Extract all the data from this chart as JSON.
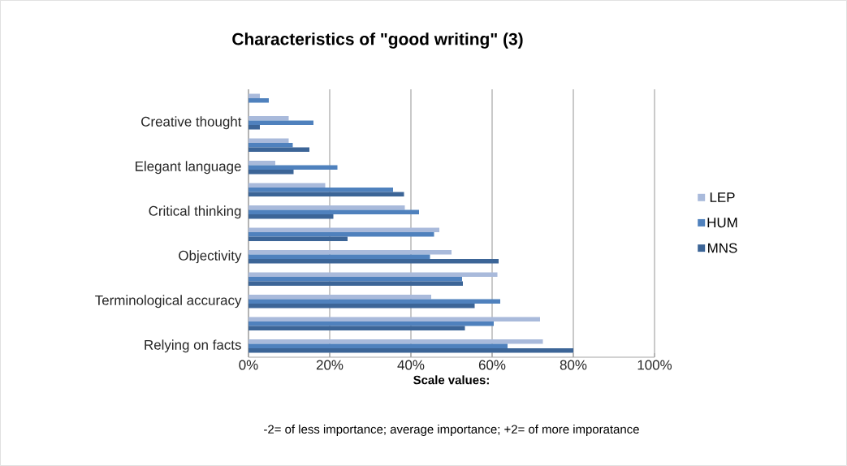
{
  "chart_data": {
    "type": "bar",
    "orientation": "horizontal",
    "title": "Characteristics of \"good writing\" (3)",
    "xlabel": "Scale values:",
    "annotations": [
      "-2= of less importance; average importance; +2= of more imporatance"
    ],
    "categories": [
      null,
      "Creative thought",
      null,
      "Elegant language",
      null,
      "Critical thinking",
      null,
      "Objectivity",
      null,
      "Terminological accuracy",
      null,
      "Relying on facts"
    ],
    "series": [
      {
        "name": "LEP",
        "color": "#a9badb",
        "values": [
          2.8,
          9.9,
          9.9,
          6.6,
          18.9,
          38.5,
          47,
          50,
          61.3,
          45,
          71.8,
          72.5
        ]
      },
      {
        "name": "HUM",
        "color": "#4f81bd",
        "values": [
          5,
          16,
          10.9,
          21.9,
          35.6,
          42,
          45.7,
          44.7,
          52.6,
          62,
          60.4,
          63.8
        ]
      },
      {
        "name": "MNS",
        "color": "#3c6597",
        "values": [
          null,
          2.8,
          15,
          11.1,
          38.3,
          20.9,
          24.4,
          61.6,
          52.8,
          55.7,
          53.3,
          80
        ]
      }
    ],
    "xlim": [
      0,
      100
    ],
    "xticks": [
      {
        "value": 0,
        "label": "0%"
      },
      {
        "value": 20,
        "label": "20%"
      },
      {
        "value": 40,
        "label": "40%"
      },
      {
        "value": 60,
        "label": "60%"
      },
      {
        "value": 80,
        "label": "80%"
      },
      {
        "value": 100,
        "label": "100%"
      }
    ],
    "grid": "x",
    "legend": "right"
  }
}
